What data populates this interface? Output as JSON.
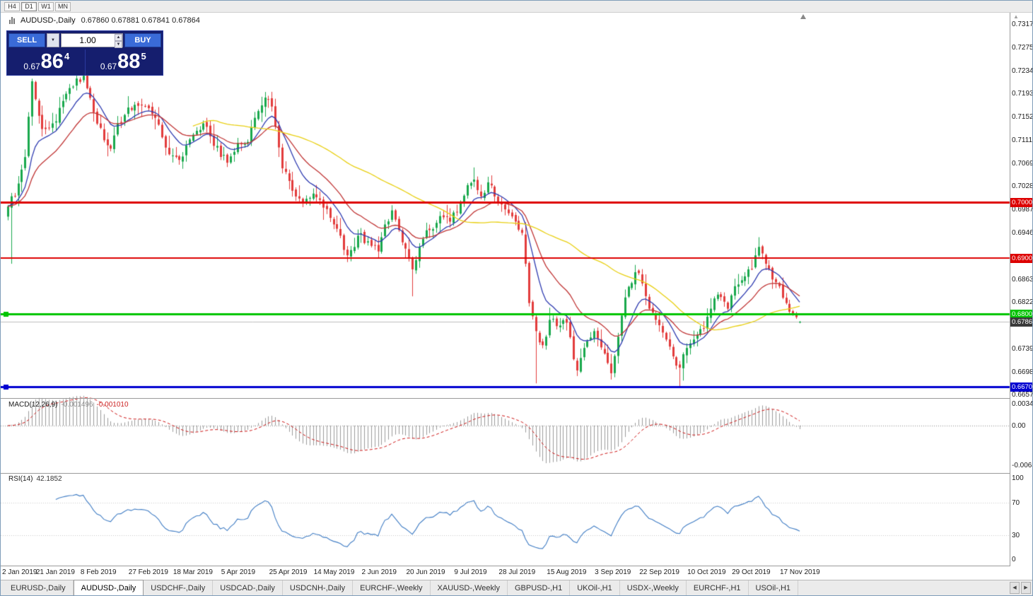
{
  "toolbar": {
    "timeframes": [
      "H4",
      "D1",
      "W1",
      "MN"
    ],
    "active": "D1"
  },
  "chart": {
    "symbol_label": "AUDUSD-,Daily",
    "ohlc_text": "0.67860 0.67881 0.67841 0.67864"
  },
  "trade_panel": {
    "sell_label": "SELL",
    "buy_label": "BUY",
    "volume": "1.00",
    "sell_price": {
      "prefix": "0.67",
      "big": "86",
      "sup": "4"
    },
    "buy_price": {
      "prefix": "0.67",
      "big": "88",
      "sup": "5"
    }
  },
  "icons": {
    "dropdown": "▼",
    "spin_up": "▲",
    "spin_down": "▼",
    "tab_scroll_left": "◀",
    "tab_scroll_right": "▶",
    "axis_scroll_up": "▲"
  },
  "indicators": {
    "macd_name": "MACD(12,26,9)",
    "macd_main": "-0.001496",
    "macd_signal": "-0.001010",
    "rsi_name": "RSI(14)",
    "rsi_value": "42.1852"
  },
  "tabs": {
    "items": [
      "EURUSD-,Daily",
      "AUDUSD-,Daily",
      "USDCHF-,Daily",
      "USDCAD-,Daily",
      "USDCNH-,Daily",
      "EURCHF-,Weekly",
      "XAUUSD-,Weekly",
      "GBPUSD-,H1",
      "UKOil-,H1",
      "USDX-,Weekly",
      "EURCHF-,H1",
      "USOil-,H1"
    ],
    "active_index": 1
  },
  "chart_data": {
    "type": "candlestick",
    "symbol": "AUDUSD-",
    "timeframe": "Daily",
    "bars_total": 232,
    "noise_seed": 7,
    "noise_amp": 0.0012,
    "candle_up_color": "#18a84c",
    "candle_down_color": "#e23b3b",
    "y_axis": {
      "price_top": 0.73233,
      "price_bottom": 0.66546,
      "labels": [
        {
          "text": "0.73170",
          "price": 0.7317
        },
        {
          "text": "0.72750",
          "price": 0.7275
        },
        {
          "text": "0.72340",
          "price": 0.7234
        },
        {
          "text": "0.71930",
          "price": 0.7193
        },
        {
          "text": "0.71520",
          "price": 0.7152
        },
        {
          "text": "0.71110",
          "price": 0.7111
        },
        {
          "text": "0.70690",
          "price": 0.7069
        },
        {
          "text": "0.70280",
          "price": 0.7028
        },
        {
          "text": "0.69870",
          "price": 0.6987
        },
        {
          "text": "0.69460",
          "price": 0.6946
        },
        {
          "text": "0.68630",
          "price": 0.6863
        },
        {
          "text": "0.68220",
          "price": 0.6822
        },
        {
          "text": "0.67390",
          "price": 0.6739
        },
        {
          "text": "0.66980",
          "price": 0.6698
        },
        {
          "text": "0.66570",
          "price": 0.6657
        }
      ]
    },
    "x_axis": {
      "labels": [
        "2 Jan 2019",
        "21 Jan 2019",
        "8 Feb 2019",
        "27 Feb 2019",
        "18 Mar 2019",
        "5 Apr 2019",
        "25 Apr 2019",
        "14 May 2019",
        "2 Jun 2019",
        "20 Jun 2019",
        "9 Jul 2019",
        "28 Jul 2019",
        "15 Aug 2019",
        "3 Sep 2019",
        "22 Sep 2019",
        "10 Oct 2019",
        "29 Oct 2019",
        "17 Nov 2019"
      ]
    },
    "close_keyframes": [
      [
        0,
        0.6992
      ],
      [
        2,
        0.701
      ],
      [
        5,
        0.708
      ],
      [
        7,
        0.7215
      ],
      [
        10,
        0.713
      ],
      [
        13,
        0.714
      ],
      [
        16,
        0.718
      ],
      [
        20,
        0.722
      ],
      [
        22,
        0.7225
      ],
      [
        25,
        0.716
      ],
      [
        28,
        0.711
      ],
      [
        30,
        0.7095
      ],
      [
        32,
        0.714
      ],
      [
        34,
        0.7155
      ],
      [
        39,
        0.7172
      ],
      [
        43,
        0.715
      ],
      [
        47,
        0.7085
      ],
      [
        50,
        0.7075
      ],
      [
        54,
        0.712
      ],
      [
        57,
        0.714
      ],
      [
        60,
        0.71
      ],
      [
        64,
        0.707
      ],
      [
        67,
        0.7105
      ],
      [
        70,
        0.7107
      ],
      [
        72,
        0.715
      ],
      [
        75,
        0.7186
      ],
      [
        77,
        0.717
      ],
      [
        80,
        0.706
      ],
      [
        83,
        0.702
      ],
      [
        86,
        0.7
      ],
      [
        89,
        0.7015
      ],
      [
        92,
        0.699
      ],
      [
        95,
        0.696
      ],
      [
        97,
        0.694
      ],
      [
        99,
        0.6905
      ],
      [
        102,
        0.694
      ],
      [
        105,
        0.693
      ],
      [
        108,
        0.6912
      ],
      [
        110,
        0.696
      ],
      [
        112,
        0.6985
      ],
      [
        114,
        0.695
      ],
      [
        117,
        0.69
      ],
      [
        118,
        0.688
      ],
      [
        120,
        0.692
      ],
      [
        123,
        0.695
      ],
      [
        126,
        0.6975
      ],
      [
        129,
        0.6965
      ],
      [
        132,
        0.7
      ],
      [
        134,
        0.703
      ],
      [
        136,
        0.704
      ],
      [
        138,
        0.701
      ],
      [
        140,
        0.7035
      ],
      [
        143,
        0.7
      ],
      [
        146,
        0.698
      ],
      [
        150,
        0.6945
      ],
      [
        151,
        0.689
      ],
      [
        152,
        0.682
      ],
      [
        154,
        0.677
      ],
      [
        156,
        0.6745
      ],
      [
        158,
        0.679
      ],
      [
        161,
        0.678
      ],
      [
        163,
        0.6785
      ],
      [
        165,
        0.672
      ],
      [
        166,
        0.67
      ],
      [
        168,
        0.674
      ],
      [
        171,
        0.677
      ],
      [
        174,
        0.673
      ],
      [
        176,
        0.6695
      ],
      [
        178,
        0.676
      ],
      [
        180,
        0.683
      ],
      [
        183,
        0.6875
      ],
      [
        185,
        0.6855
      ],
      [
        187,
        0.681
      ],
      [
        189,
        0.679
      ],
      [
        192,
        0.6755
      ],
      [
        194,
        0.6725
      ],
      [
        196,
        0.6705
      ],
      [
        198,
        0.674
      ],
      [
        200,
        0.6755
      ],
      [
        203,
        0.6775
      ],
      [
        205,
        0.681
      ],
      [
        207,
        0.6835
      ],
      [
        210,
        0.681
      ],
      [
        212,
        0.685
      ],
      [
        216,
        0.688
      ],
      [
        218,
        0.6905
      ],
      [
        219,
        0.692
      ],
      [
        221,
        0.689
      ],
      [
        223,
        0.6862
      ],
      [
        225,
        0.685
      ],
      [
        227,
        0.682
      ],
      [
        229,
        0.68
      ],
      [
        231,
        0.67864
      ]
    ],
    "wick_lows": [
      [
        1,
        0.689
      ],
      [
        99,
        0.6893
      ],
      [
        118,
        0.6832
      ],
      [
        154,
        0.6677
      ],
      [
        166,
        0.669
      ],
      [
        176,
        0.6686
      ],
      [
        196,
        0.6672
      ]
    ],
    "wick_highs": [
      [
        22,
        0.7235
      ],
      [
        75,
        0.7196
      ],
      [
        136,
        0.7049
      ],
      [
        140,
        0.7045
      ],
      [
        183,
        0.6888
      ],
      [
        219,
        0.6929
      ]
    ],
    "last_bar": {
      "open": 0.6786,
      "high": 0.67881,
      "low": 0.67841,
      "close": 0.67864
    },
    "moving_averages": [
      {
        "type": "ema",
        "period": 10,
        "color": "#2e3bb0"
      },
      {
        "type": "ema",
        "period": 21,
        "color": "#c03535"
      },
      {
        "type": "sma",
        "period": 55,
        "color": "#e8cf12"
      }
    ],
    "hlines": [
      {
        "price": 0.70002,
        "color": "#dd0000",
        "width": 3,
        "badge": "0.70002",
        "left_marker": false
      },
      {
        "price": 0.69006,
        "color": "#dd0000",
        "width": 2,
        "badge": "0.69006",
        "left_marker": false
      },
      {
        "price": 0.68004,
        "color": "#00c400",
        "width": 3,
        "badge": "0.68004",
        "left_marker": true
      },
      {
        "price": 0.66705,
        "color": "#0000d0",
        "width": 3,
        "badge": "0.66705",
        "left_marker": true
      }
    ],
    "current_price": {
      "value": 0.67864,
      "badge": "0.67864",
      "line_color": "#bdbdbd",
      "badge_color": "#3a3a3a"
    },
    "macd": {
      "fast": 12,
      "slow": 26,
      "signal": 9,
      "hist_color": "#9b9b9b",
      "signal_color": "#cc1111",
      "axis_labels": [
        {
          "text": "0.00349",
          "value": 0.00349
        },
        {
          "text": "0.00",
          "value": 0
        },
        {
          "text": "-0.00637",
          "value": -0.00637
        }
      ]
    },
    "rsi": {
      "period": 14,
      "line_color": "#3f7cc4",
      "levels": [
        70,
        30
      ],
      "axis_labels": [
        {
          "text": "100",
          "value": 100
        },
        {
          "text": "70",
          "value": 70
        },
        {
          "text": "30",
          "value": 30
        },
        {
          "text": "0",
          "value": 0
        }
      ]
    }
  }
}
